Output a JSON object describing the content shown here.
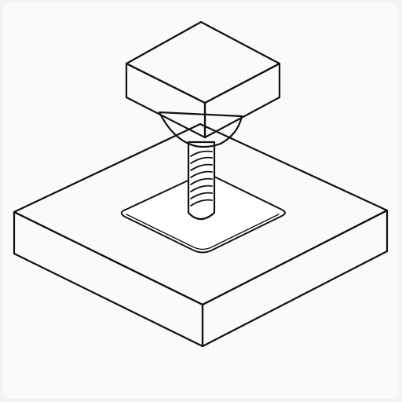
{
  "colors": {
    "background": "#f3f3f5",
    "card": "#fafafc",
    "stroke": "#111111",
    "face": "#ffffff"
  },
  "illustration": {
    "subject": "screw-through-plate-icon",
    "parts": [
      "square-screw-head",
      "threaded-shank",
      "square-base-plate",
      "recessed-hole"
    ]
  }
}
